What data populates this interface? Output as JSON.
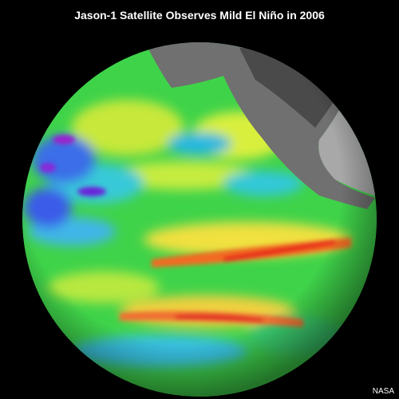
{
  "title": "Jason-1 Satellite Observes Mild El Niño in 2006",
  "credit": "NASA"
}
